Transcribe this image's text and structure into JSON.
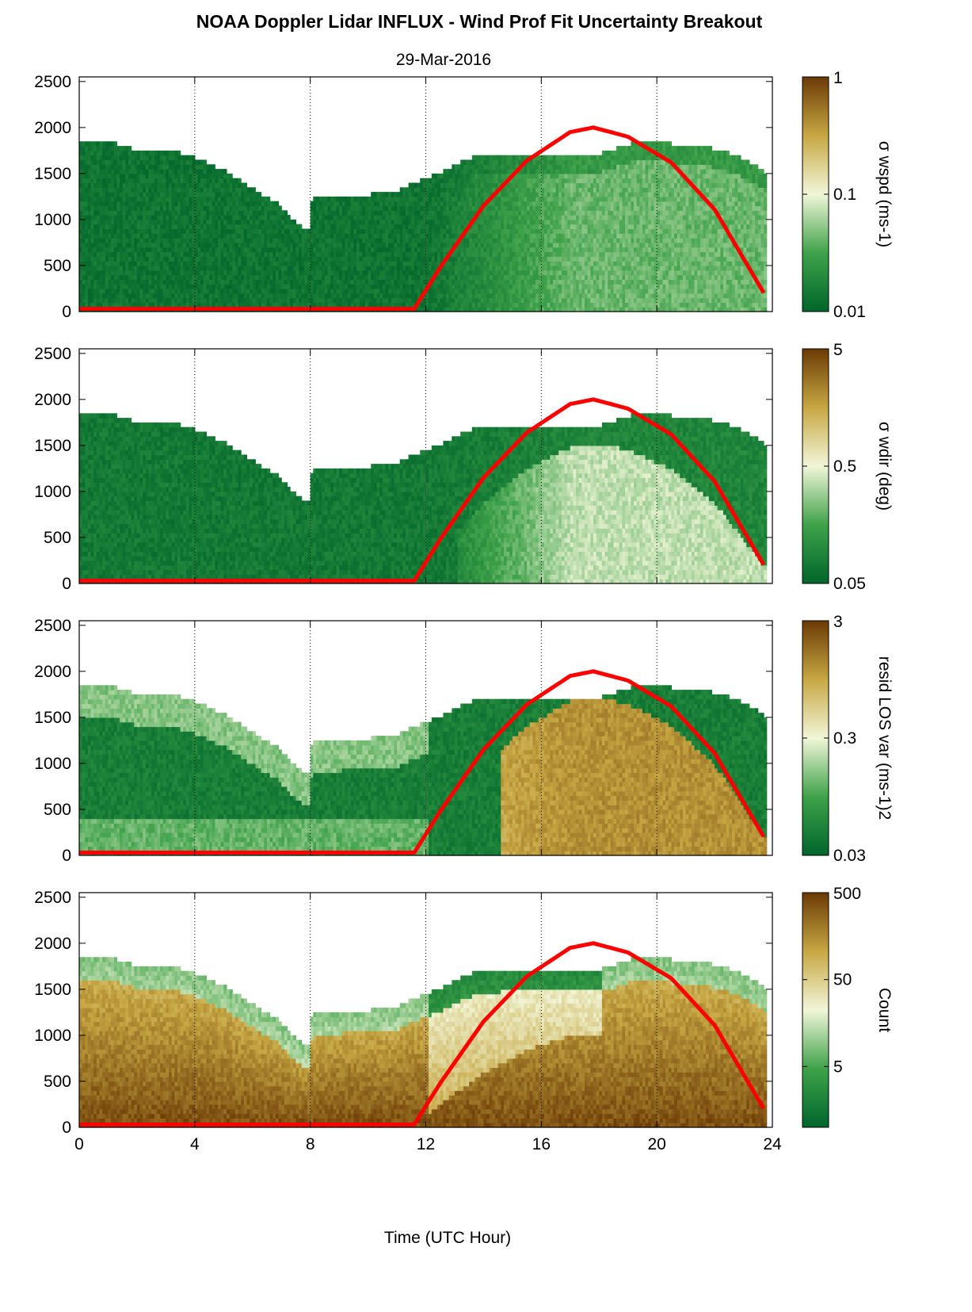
{
  "figure": {
    "title": "NOAA Doppler Lidar INFLUX - Wind Prof Fit Uncertainty Breakout",
    "subtitle": "29-Mar-2016",
    "xlabel": "Time (UTC Hour)"
  },
  "chart_data": [
    {
      "type": "heatmap",
      "panel": 1,
      "colorbar_label": "σ wspd (ms-1)",
      "colorbar_scale": "log",
      "colorbar_range": [
        0.01,
        1
      ],
      "colorbar_ticks": [
        "0.01",
        "0.1",
        "1"
      ],
      "xlim": [
        0,
        24
      ],
      "ylim": [
        0,
        2550
      ],
      "yticks": [
        "0",
        "500",
        "1000",
        "1500",
        "2000",
        "2500"
      ],
      "xticks": [
        "0",
        "4",
        "8",
        "12",
        "16",
        "20",
        "24"
      ],
      "grid": "vertical dotted at 4, 8, 12, 16, 20",
      "overlay": "red solar elevation curve peaking ~2000 at ~17.8 h"
    },
    {
      "type": "heatmap",
      "panel": 2,
      "colorbar_label": "σ wdir (deg)",
      "colorbar_scale": "log",
      "colorbar_range": [
        0.05,
        5
      ],
      "colorbar_ticks": [
        "0.05",
        "0.5",
        "5"
      ],
      "xlim": [
        0,
        24
      ],
      "ylim": [
        0,
        2550
      ]
    },
    {
      "type": "heatmap",
      "panel": 3,
      "colorbar_label": "resid LOS var (ms-1)2",
      "colorbar_scale": "log",
      "colorbar_range": [
        0.03,
        3
      ],
      "colorbar_ticks": [
        "0.03",
        "0.3",
        "3"
      ],
      "xlim": [
        0,
        24
      ],
      "ylim": [
        0,
        2550
      ]
    },
    {
      "type": "heatmap",
      "panel": 4,
      "colorbar_label": "Count",
      "colorbar_scale": "log",
      "colorbar_range": [
        1,
        500
      ],
      "colorbar_ticks": [
        "5",
        "50",
        "500"
      ],
      "xlim": [
        0,
        24
      ],
      "ylim": [
        0,
        2550
      ]
    }
  ],
  "colors": {
    "dark_green": "#00662b",
    "mid_green": "#3fa24a",
    "light": "#f1f6d8",
    "tan": "#c7a743",
    "dark_brown": "#6b3a05",
    "sun_curve": "#ff0000"
  }
}
